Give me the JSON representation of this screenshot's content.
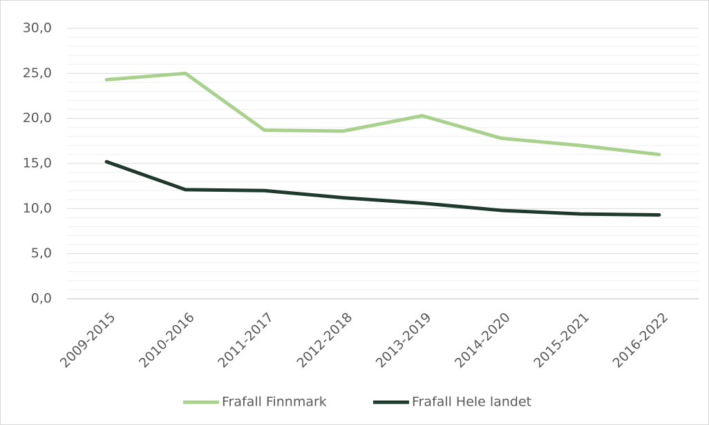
{
  "chart_data": {
    "type": "line",
    "categories": [
      "2009-2015",
      "2010-2016",
      "2011-2017",
      "2012-2018",
      "2013-2019",
      "2014-2020",
      "2015-2021",
      "2016-2022"
    ],
    "series": [
      {
        "name": "Frafall Finnmark",
        "color": "#a9d18e",
        "values": [
          24.3,
          25.0,
          18.7,
          18.6,
          20.3,
          17.8,
          17.0,
          16.0
        ]
      },
      {
        "name": "Frafall Hele landet",
        "color": "#1f3a2c",
        "values": [
          15.2,
          12.1,
          12.0,
          11.2,
          10.6,
          9.8,
          9.4,
          9.3
        ]
      }
    ],
    "ylim": [
      0,
      30
    ],
    "yticks": [
      {
        "value": 0,
        "label": "0,0"
      },
      {
        "value": 5,
        "label": "5,0"
      },
      {
        "value": 10,
        "label": "10,0"
      },
      {
        "value": 15,
        "label": "15,0"
      },
      {
        "value": 20,
        "label": "20,0"
      },
      {
        "value": 25,
        "label": "25,0"
      },
      {
        "value": 30,
        "label": "30,0"
      }
    ],
    "minor_yticks": [
      1,
      2,
      3,
      4,
      6,
      7,
      8,
      9,
      11,
      12,
      13,
      14,
      16,
      17,
      18,
      19,
      21,
      22,
      23,
      24,
      26,
      27,
      28,
      29
    ],
    "grid": true,
    "legend": "bottom"
  }
}
